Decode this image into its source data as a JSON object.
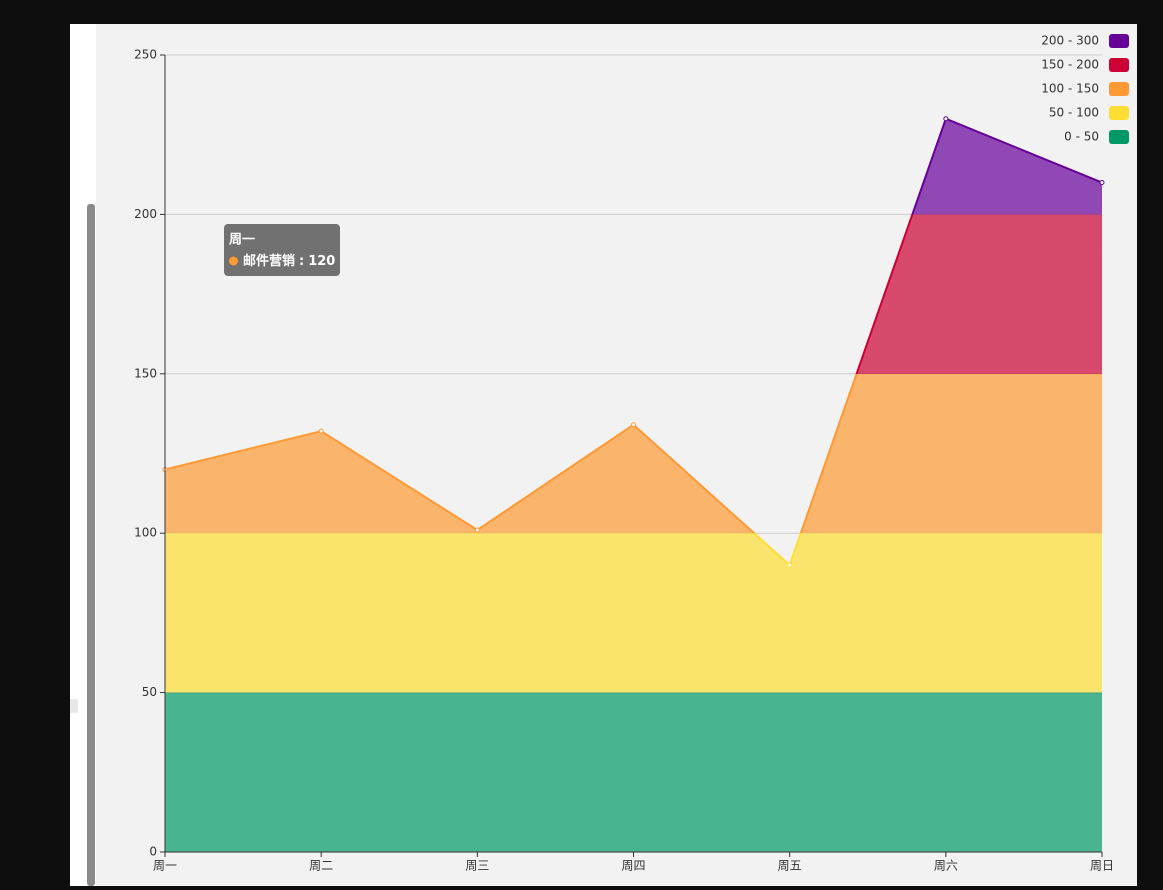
{
  "chart_data": {
    "type": "area",
    "categories": [
      "周一",
      "周二",
      "周三",
      "周四",
      "周五",
      "周六",
      "周日"
    ],
    "series": [
      {
        "name": "邮件营销",
        "values": [
          120,
          132,
          101,
          134,
          90,
          230,
          210
        ]
      }
    ],
    "ylim": [
      0,
      250
    ],
    "yticks": [
      0,
      50,
      100,
      150,
      200,
      250
    ],
    "grid": true,
    "legend_position": "top-right",
    "pieces": [
      {
        "label": "200 - 300",
        "min": 200,
        "max": 300,
        "color": "#660099"
      },
      {
        "label": "150 - 200",
        "min": 150,
        "max": 200,
        "color": "#cc0033"
      },
      {
        "label": "100 - 150",
        "min": 100,
        "max": 150,
        "color": "#ff9933"
      },
      {
        "label": "50 - 100",
        "min": 50,
        "max": 100,
        "color": "#ffde33"
      },
      {
        "label": "0 - 50",
        "min": 0,
        "max": 50,
        "color": "#009966"
      }
    ],
    "tooltip": {
      "title": "周一",
      "label": "邮件营销",
      "separator": ":",
      "value": 120,
      "color": "#ff9933"
    }
  }
}
